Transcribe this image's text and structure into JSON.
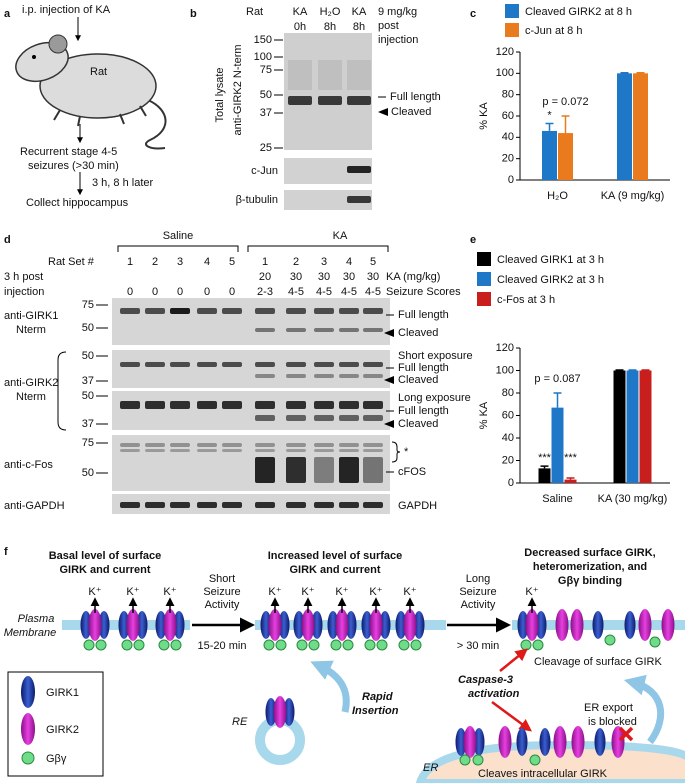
{
  "panel_labels": [
    "a",
    "b",
    "c",
    "d",
    "e",
    "f"
  ],
  "panel_a": {
    "injection": "i.p. injection of KA",
    "animal": "Rat",
    "seizures": [
      "Recurrent stage 4-5",
      "seizures (>30 min)"
    ],
    "delay": "3 h, 8 h later",
    "collect": "Collect hippocampus"
  },
  "panel_b": {
    "animal": "Rat",
    "columns": [
      [
        "KA",
        "0h"
      ],
      [
        "H₂O",
        "8h"
      ],
      [
        "KA",
        "8h"
      ]
    ],
    "dose": [
      "9 mg/kg",
      "post",
      "injection"
    ],
    "side_labels": [
      "Total lysate",
      "anti-GIRK2 N-term"
    ],
    "mw": [
      "150",
      "100",
      "75",
      "50",
      "37",
      "25"
    ],
    "bands": [
      "Full length",
      "Cleaved"
    ],
    "loading": [
      "c-Jun",
      "β-tubulin"
    ]
  },
  "chart_data": [
    {
      "type": "bar",
      "ylabel": "% KA",
      "categories": [
        "H₂O",
        "KA (9 mg/kg)"
      ],
      "series": [
        {
          "name": "Cleaved GIRK2 at 8 h",
          "color": "#1f77c8",
          "values": [
            46,
            100
          ],
          "errors": [
            7,
            0.5
          ]
        },
        {
          "name": "c-Jun at 8 h",
          "color": "#ea7a1e",
          "values": [
            44,
            100
          ],
          "errors": [
            16,
            0.5
          ]
        }
      ],
      "ylim": [
        0,
        120
      ],
      "yticks": [
        0,
        20,
        40,
        60,
        80,
        100,
        120
      ],
      "annotations": [
        "*",
        "p = 0.072"
      ]
    },
    {
      "type": "bar",
      "ylabel": "% KA",
      "categories": [
        "Saline",
        "KA (30 mg/kg)"
      ],
      "series": [
        {
          "name": "Cleaved GIRK1 at 3 h",
          "color": "#000000",
          "values": [
            13,
            100
          ],
          "errors": [
            2,
            0.5
          ]
        },
        {
          "name": "Cleaved GIRK2 at 3 h",
          "color": "#1f77c8",
          "values": [
            67,
            100
          ],
          "errors": [
            13,
            0.5
          ]
        },
        {
          "name": "c-Fos at 3 h",
          "color": "#c81e1e",
          "values": [
            3,
            100
          ],
          "errors": [
            1.5,
            0.5
          ]
        }
      ],
      "ylim": [
        0,
        120
      ],
      "yticks": [
        0,
        20,
        40,
        60,
        80,
        100,
        120
      ],
      "annotations": [
        "***",
        "p = 0.087",
        "***"
      ]
    }
  ],
  "panel_d": {
    "rat_set_label": "Rat Set #",
    "groups": [
      "Saline",
      "KA"
    ],
    "post_injection": [
      "3 h post",
      "injection"
    ],
    "sets": [
      "1",
      "2",
      "3",
      "4",
      "5",
      "1",
      "2",
      "3",
      "4",
      "5"
    ],
    "ka_dose_label": "KA (mg/kg)",
    "ka_doses": [
      "20",
      "30",
      "30",
      "30",
      "30"
    ],
    "score_label": "Seizure Scores",
    "scores": [
      "0",
      "0",
      "0",
      "0",
      "0",
      "2-3",
      "4-5",
      "4-5",
      "4-5",
      "4-5"
    ],
    "rows": [
      {
        "antibody": [
          "anti-GIRK1",
          "Nterm"
        ],
        "mw": [
          "75",
          "50"
        ],
        "right": [
          "Full length",
          "Cleaved"
        ]
      },
      {
        "antibody": [
          "anti-GIRK2",
          "Nterm"
        ],
        "mw": [
          "50",
          "37"
        ],
        "right": [
          "Short exposure",
          "Full length",
          "Cleaved"
        ]
      },
      {
        "mw": [
          "50",
          "37"
        ],
        "right": [
          "Long exposure",
          "Full length",
          "Cleaved"
        ]
      },
      {
        "antibody": [
          "anti-c-Fos"
        ],
        "mw": [
          "75",
          "50"
        ],
        "right": [
          "*",
          "cFOS"
        ]
      },
      {
        "antibody": [
          "anti-GAPDH"
        ],
        "right": [
          "GAPDH"
        ]
      }
    ]
  },
  "panel_f": {
    "titles": [
      [
        "Basal level of surface",
        "GIRK and current"
      ],
      [
        "Increased level of surface",
        "GIRK and current"
      ],
      [
        "Decreased surface GIRK,",
        "heteromerization, and",
        "Gβγ binding"
      ]
    ],
    "ion": "K⁺",
    "membrane": [
      "Plasma",
      "Membrane"
    ],
    "transitions": [
      {
        "label": [
          "Short",
          "Seizure",
          "Activity"
        ],
        "time": "15-20 min"
      },
      {
        "label": [
          "Long",
          "Seizure",
          "Activity"
        ],
        "time": "> 30 min"
      }
    ],
    "recycling_endosome": "RE",
    "insertion": [
      "Rapid",
      "Insertion"
    ],
    "surface_cleavage": "Cleavage of surface GIRK",
    "caspase": [
      "Caspase-3",
      "activation"
    ],
    "er_block": [
      "ER export",
      "is blocked"
    ],
    "er": "ER",
    "er_cleavage": "Cleaves intracellular GIRK",
    "legend": [
      "GIRK1",
      "GIRK2",
      "Gβγ"
    ]
  }
}
